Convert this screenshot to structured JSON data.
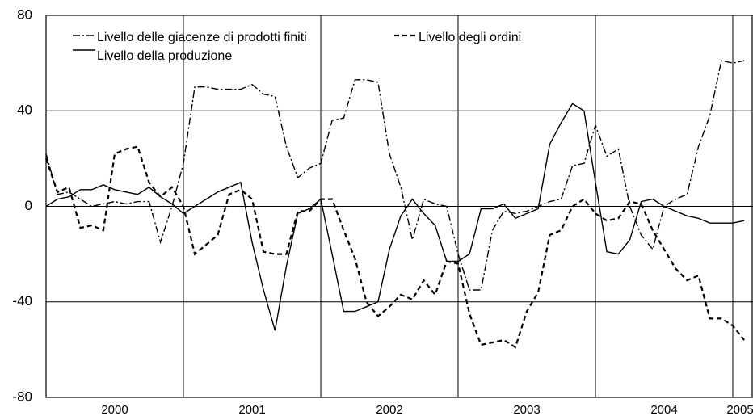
{
  "chart_data": {
    "type": "line",
    "x": [
      2000,
      2000.083,
      2000.167,
      2000.25,
      2000.333,
      2000.417,
      2000.5,
      2000.583,
      2000.667,
      2000.75,
      2000.833,
      2000.917,
      2001,
      2001.083,
      2001.167,
      2001.25,
      2001.333,
      2001.417,
      2001.5,
      2001.583,
      2001.667,
      2001.75,
      2001.833,
      2001.917,
      2002,
      2002.083,
      2002.167,
      2002.25,
      2002.333,
      2002.417,
      2002.5,
      2002.583,
      2002.667,
      2002.75,
      2002.833,
      2002.917,
      2003,
      2003.083,
      2003.167,
      2003.25,
      2003.333,
      2003.417,
      2003.5,
      2003.583,
      2003.667,
      2003.75,
      2003.833,
      2003.917,
      2004,
      2004.083,
      2004.167,
      2004.25,
      2004.333,
      2004.417,
      2004.5,
      2004.583,
      2004.667,
      2004.75,
      2004.833,
      2004.917,
      2005,
      2005.083
    ],
    "series": [
      {
        "name": "Livello delle giacenze di prodotti finiti",
        "color": "#000000",
        "style": "dashdot",
        "values": [
          22,
          5,
          6,
          3,
          0,
          1,
          2,
          1,
          2,
          2,
          -15,
          0,
          18,
          50,
          50,
          49,
          49,
          49,
          51,
          47,
          46,
          25,
          12,
          16,
          18,
          36,
          37,
          53,
          53,
          52,
          22,
          8,
          -14,
          3,
          1,
          0,
          -20,
          -35,
          -35,
          -10,
          -2,
          -3,
          -2,
          0,
          2,
          3,
          17,
          18,
          34,
          21,
          24,
          0,
          -12,
          -18,
          0,
          3,
          5,
          25,
          38,
          61,
          60,
          61
        ]
      },
      {
        "name": "Livello degli ordini",
        "color": "#000000",
        "style": "dashed",
        "values": [
          20,
          6,
          8,
          -9,
          -8,
          -10,
          22,
          24,
          25,
          10,
          4,
          8,
          0,
          -20,
          -16,
          -12,
          5,
          7,
          3,
          -19,
          -20,
          -20,
          -2,
          -2,
          3,
          3,
          -10,
          -22,
          -40,
          -46,
          -42,
          -37,
          -39,
          -31,
          -37,
          -23,
          -24,
          -45,
          -58,
          -57,
          -56,
          -59,
          -44,
          -36,
          -12,
          -10,
          0,
          3,
          -3,
          -6,
          -5,
          2,
          1,
          -10,
          -18,
          -26,
          -31,
          -29,
          -47,
          -47,
          -50,
          -56
        ]
      },
      {
        "name": "Livello della produzione",
        "color": "#000000",
        "style": "solid",
        "values": [
          0,
          3,
          4,
          7,
          7,
          9,
          7,
          6,
          5,
          8,
          4,
          1,
          -3,
          0,
          3,
          6,
          8,
          10,
          -15,
          -35,
          -52,
          -25,
          -3,
          -1,
          3,
          -20,
          -44,
          -44,
          -42,
          -40,
          -18,
          -4,
          3,
          -3,
          -8,
          -23,
          -23,
          -20,
          -1,
          -1,
          1,
          -5,
          -3,
          -1,
          26,
          35,
          43,
          40,
          10,
          -19,
          -20,
          -14,
          2,
          3,
          0,
          -2,
          -4,
          -5,
          -7,
          -7,
          -7,
          -6
        ]
      }
    ],
    "xlim": [
      2000,
      2005.147
    ],
    "xticks": [
      {
        "value": 2000.5,
        "label": "2000"
      },
      {
        "value": 2001.5,
        "label": "2001"
      },
      {
        "value": 2002.5,
        "label": "2002"
      },
      {
        "value": 2003.5,
        "label": "2003"
      },
      {
        "value": 2004.5,
        "label": "2004"
      },
      {
        "value": 2005.5,
        "label": "2005"
      }
    ],
    "xgrid": [
      2001,
      2002,
      2003,
      2004,
      2005
    ],
    "ylim": [
      -80,
      80
    ],
    "yticks": [
      -80,
      -40,
      0,
      40,
      80
    ],
    "grid": true
  }
}
